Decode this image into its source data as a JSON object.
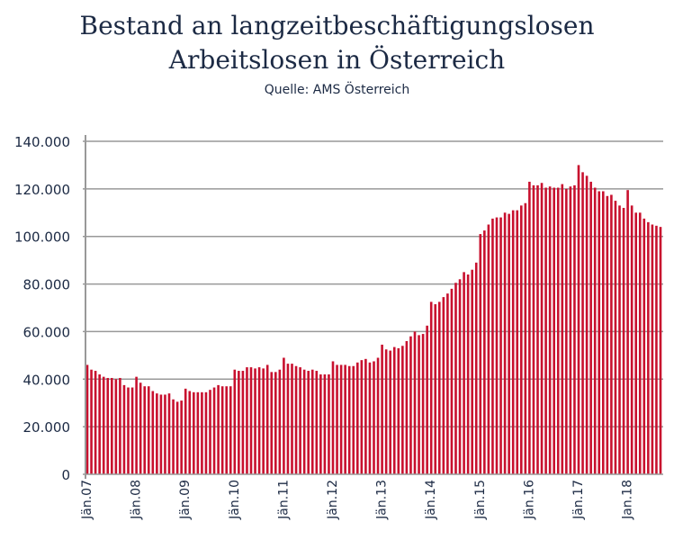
{
  "chart_data": {
    "type": "bar",
    "title_line1": "Bestand an langzeitbeschäftigungslosen",
    "title_line2": "Arbeitslosen in Österreich",
    "subtitle": "Quelle: AMS Österreich",
    "xlabel": "",
    "ylabel": "",
    "ylim": [
      0,
      140000
    ],
    "yticks": [
      "0",
      "20.000",
      "40.000",
      "60.000",
      "80.000",
      "100.000",
      "120.000",
      "140.000"
    ],
    "xtick_labels": [
      "Jän.07",
      "Jän.08",
      "Jän.09",
      "Jän.10",
      "Jän.11",
      "Jän.12",
      "Jän.13",
      "Jän.14",
      "Jän.15",
      "Jän.16",
      "Jän.17",
      "Jan.18"
    ],
    "grid": true,
    "bar_color": "#c8102e",
    "x_start": "2007-01",
    "x_end": "2018-09",
    "frequency": "monthly",
    "values_thousands": [
      46,
      44,
      43.5,
      42,
      41,
      40.5,
      40.5,
      40,
      40.5,
      37.5,
      36.5,
      36.5,
      41,
      38.5,
      37,
      37,
      35,
      34,
      33.5,
      33.5,
      34,
      31.5,
      30.5,
      31,
      36,
      35,
      34.5,
      34.5,
      34.5,
      34.5,
      35.5,
      36.5,
      37.5,
      37,
      37,
      37,
      44,
      43.5,
      43.5,
      45,
      45,
      44.5,
      45,
      44.5,
      46,
      43,
      43,
      44,
      49,
      46.5,
      46.5,
      45.5,
      45,
      44,
      43.5,
      44,
      43.5,
      42,
      42,
      42,
      47.5,
      46,
      46,
      46,
      45.5,
      45.5,
      47,
      48,
      48.5,
      47,
      47.5,
      49,
      54.5,
      52.5,
      52,
      53.5,
      53,
      54,
      56,
      58,
      60,
      58.5,
      59,
      62.5,
      72.5,
      71.5,
      72.5,
      74.5,
      76,
      78,
      80.5,
      82,
      85,
      84,
      86,
      89,
      101,
      102.5,
      105,
      107.5,
      108,
      108,
      110,
      109.5,
      111,
      111,
      113,
      114,
      123,
      121.5,
      121.5,
      122.5,
      120.5,
      121,
      120.5,
      120.5,
      122,
      120,
      121,
      121.5,
      130,
      127,
      125.5,
      123,
      120.5,
      119,
      119,
      117,
      117.5,
      115,
      113,
      112,
      119.5,
      113,
      110,
      110,
      107.5,
      106,
      105,
      104.5,
      104
    ]
  }
}
